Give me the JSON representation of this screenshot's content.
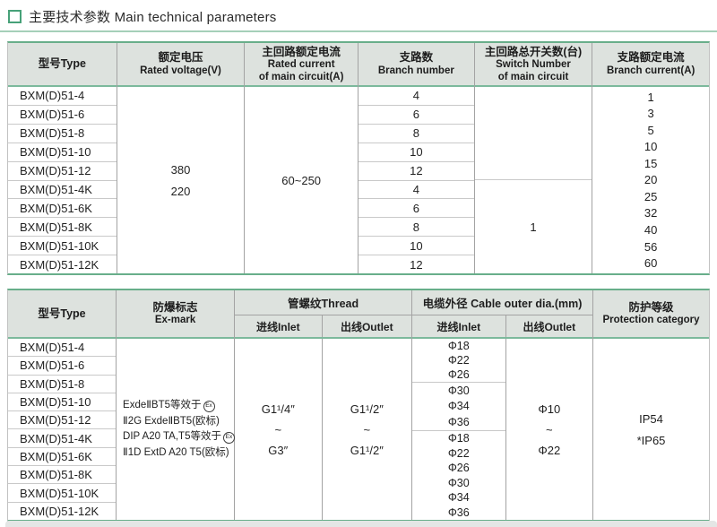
{
  "title": {
    "text": "主要技术参数 Main technical parameters"
  },
  "colors": {
    "accent_green": "#47a179",
    "table_border_green": "#68ae8a",
    "header_bg": "#dde2de",
    "grid_line_gray": "#a3a3a3",
    "row_line_gray": "#c9c9c9"
  },
  "table1": {
    "headers": {
      "type": "型号Type",
      "voltage_zh": "额定电压",
      "voltage_en": "Rated voltage(V)",
      "current_zh": "主回路额定电流",
      "current_en1": "Rated current",
      "current_en2": "of main circuit(A)",
      "branch_zh": "支路数",
      "branch_en": "Branch number",
      "switch_zh": "主回路总开关数(台)",
      "switch_en1": "Switch Number",
      "switch_en2": "of main circuit",
      "bcurrent_zh": "支路额定电流",
      "bcurrent_en": "Branch current(A)"
    },
    "types": [
      "BXM(D)51-4",
      "BXM(D)51-6",
      "BXM(D)51-8",
      "BXM(D)51-10",
      "BXM(D)51-12",
      "BXM(D)51-4K",
      "BXM(D)51-6K",
      "BXM(D)51-8K",
      "BXM(D)51-10K",
      "BXM(D)51-12K"
    ],
    "voltage_values": [
      "380",
      "220"
    ],
    "main_current": "60~250",
    "branch_numbers": [
      "4",
      "6",
      "8",
      "10",
      "12",
      "4",
      "6",
      "8",
      "10",
      "12"
    ],
    "switch_number": "1",
    "branch_currents": [
      "1",
      "3",
      "5",
      "10",
      "15",
      "20",
      "25",
      "32",
      "40",
      "56",
      "60"
    ]
  },
  "table2": {
    "headers": {
      "type": "型号Type",
      "exmark_zh": "防爆标志",
      "exmark_en": "Ex-mark",
      "thread": "管螺纹Thread",
      "cable": "电缆外径 Cable outer dia.(mm)",
      "inlet": "进线Inlet",
      "outlet": "出线Outlet",
      "protection_zh": "防护等级",
      "protection_en": "Protection category"
    },
    "types": [
      "BXM(D)51-4",
      "BXM(D)51-6",
      "BXM(D)51-8",
      "BXM(D)51-10",
      "BXM(D)51-12",
      "BXM(D)51-4K",
      "BXM(D)51-6K",
      "BXM(D)51-8K",
      "BXM(D)51-10K",
      "BXM(D)51-12K"
    ],
    "ex_mark": {
      "line1": "ExdeⅡBT5等效于",
      "line2": "Ⅱ2G ExdeⅡBT5(欧标)",
      "line3": "DIP A20 TA,T5等效于",
      "line4": "Ⅱ1D ExtD A20 T5(欧标)",
      "badge": "Ex"
    },
    "thread_inlet": [
      "G1¹/4″",
      "~",
      "G3″"
    ],
    "thread_outlet": [
      "G1¹/2″",
      "~",
      "G1¹/2″"
    ],
    "cable_inlet_g1": [
      "Φ18",
      "Φ22",
      "Φ26"
    ],
    "cable_inlet_g2": [
      "Φ30",
      "Φ34",
      "Φ36"
    ],
    "cable_inlet_g3": [
      "Φ18",
      "Φ22",
      "Φ26",
      "Φ30",
      "Φ34",
      "Φ36"
    ],
    "cable_outlet": [
      "Φ10",
      "~",
      "Φ22"
    ],
    "protection": [
      "IP54",
      "*IP65"
    ]
  }
}
